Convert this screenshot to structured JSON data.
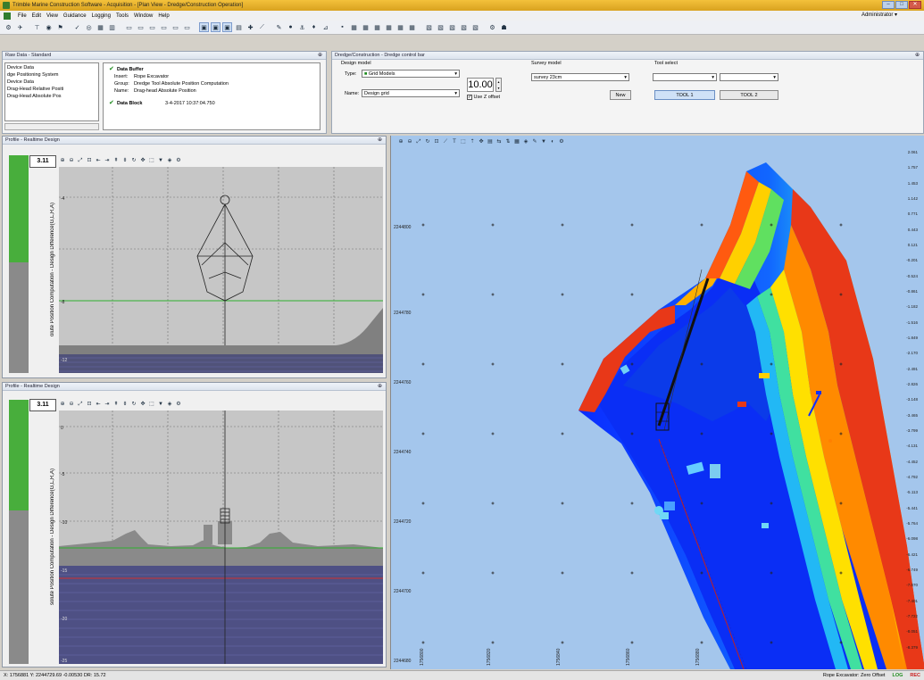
{
  "window": {
    "title": "Trimble Marine Construction Software - Acquisition - [Plan View - Dredge/Construction Operation]",
    "buttons": [
      "–",
      "□",
      "✕"
    ]
  },
  "menu": [
    "File",
    "Edit",
    "View",
    "Guidance",
    "Logging",
    "Tools",
    "Window",
    "Help"
  ],
  "user": "Administrator ▾",
  "raw_data": {
    "title": "Raw Data - Standard",
    "list": [
      "Device Data",
      "dge Positioning System",
      "Device Data",
      "Drag-Head Relative Positi",
      "Drag-Head Absolute Pos"
    ],
    "detail": {
      "header1": "Data Buffer",
      "rows": [
        {
          "k": "Insert:",
          "v": "Rope Excavator"
        },
        {
          "k": "Group:",
          "v": "Dredge Tool Absolute Position Computation"
        },
        {
          "k": "Name:",
          "v": "Drag-head Absolute Position"
        }
      ],
      "header2": "Data Block",
      "block_time": "3-4-2017 10:37:04.750"
    }
  },
  "dredge_bar": {
    "title": "Dredge/Construction - Dredge control bar",
    "design_model_label": "Design model",
    "type_label": "Type:",
    "type_value": "Grid Models",
    "name_label": "Name:",
    "name_value": "Design grid",
    "offset_value": "10.00",
    "use_z_offset": "Use Z offset",
    "survey_model_label": "Survey model",
    "survey_value": "survey 23cm",
    "new_button": "New",
    "tool_select_label": "Tool select",
    "tool1": "TOOL 1",
    "tool2": "TOOL 2"
  },
  "profile_top": {
    "title": "Profile - Realtime Design",
    "depth": "3.11",
    "vertical_label": "olute Position Computation - Design Difference(G,L,R,A)",
    "y_ticks": [
      "-4",
      "-8",
      "-12"
    ]
  },
  "profile_bottom": {
    "title": "Profile - Realtime Design",
    "depth": "3.11",
    "vertical_label": "solute Position Computation - Design Difference(G,L,R,A)",
    "y_ticks": [
      "0",
      "-5",
      "-10",
      "-15",
      "-20",
      "-25"
    ]
  },
  "plan": {
    "northings": [
      "2244800",
      "2244780",
      "2244760",
      "2244740",
      "2244720",
      "2244700",
      "2244680"
    ],
    "eastings": [
      "1756800",
      "1756820",
      "1756840",
      "1756860",
      "1756880"
    ],
    "scale_values": [
      "2.061",
      "1.757",
      "1.453",
      "1.142",
      "0.771",
      "0.443",
      "0.121",
      "-0.201",
      "-0.524",
      "-0.861",
      "-1.182",
      "-1.516",
      "-1.849",
      "-2.170",
      "-2.491",
      "-2.826",
      "-3.148",
      "-3.465",
      "-3.799",
      "-4.131",
      "-4.452",
      "-4.792",
      "-5.113",
      "-5.441",
      "-5.764",
      "-6.098",
      "-6.421",
      "-6.749",
      "-7.070",
      "-7.401",
      "-7.722",
      "-8.051",
      "-8.379"
    ]
  },
  "status": {
    "left": "X: 1756881  Y: 2244729.69  -0.00530  DR: 15.72",
    "tool": "Rope Excavator: Zero Offset",
    "log": "LOG",
    "rec": "REC"
  }
}
